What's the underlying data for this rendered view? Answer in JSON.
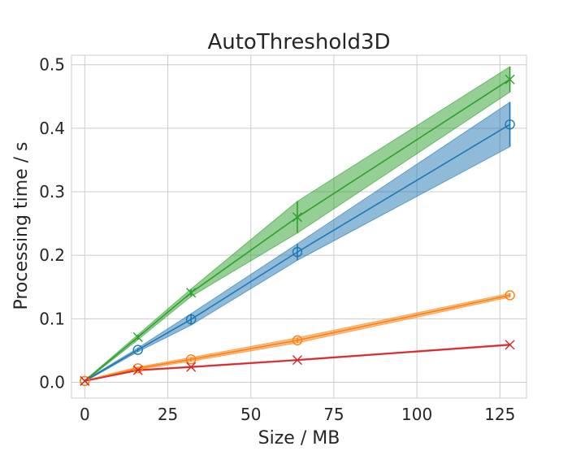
{
  "chart_data": {
    "type": "line",
    "title": "AutoThreshold3D",
    "xlabel": "Size / MB",
    "ylabel": "Processing time / s",
    "xlim": [
      -4,
      133
    ],
    "ylim": [
      -0.025,
      0.515
    ],
    "xticks": [
      0,
      25,
      50,
      75,
      100,
      125
    ],
    "yticks": [
      0.0,
      0.1,
      0.2,
      0.3,
      0.4,
      0.5
    ],
    "xtick_labels": [
      "0",
      "25",
      "50",
      "75",
      "100",
      "125"
    ],
    "ytick_labels": [
      "0.0",
      "0.1",
      "0.2",
      "0.3",
      "0.4",
      "0.5"
    ],
    "grid": true,
    "legend": "none",
    "series": [
      {
        "color": "#2ca02c",
        "marker": "x",
        "x": [
          0,
          16,
          32,
          64,
          128
        ],
        "y": [
          0.002,
          0.071,
          0.141,
          0.26,
          0.477
        ],
        "err": [
          0.001,
          0.004,
          0.006,
          0.025,
          0.02
        ]
      },
      {
        "color": "#1f77b4",
        "marker": "o",
        "x": [
          0,
          16,
          32,
          64,
          128
        ],
        "y": [
          0.002,
          0.051,
          0.099,
          0.205,
          0.406
        ],
        "err": [
          0.001,
          0.003,
          0.009,
          0.013,
          0.035
        ]
      },
      {
        "color": "#ff7f0e",
        "marker": "o",
        "x": [
          0,
          16,
          32,
          64,
          128
        ],
        "y": [
          0.002,
          0.022,
          0.036,
          0.066,
          0.137
        ],
        "err": [
          0.001,
          0.002,
          0.003,
          0.004,
          0.003
        ]
      },
      {
        "color": "#d62728",
        "marker": "x",
        "x": [
          0,
          16,
          32,
          64,
          128
        ],
        "y": [
          0.002,
          0.019,
          0.024,
          0.035,
          0.059
        ],
        "err": [
          0.0005,
          0.001,
          0.001,
          0.001,
          0.001
        ]
      }
    ]
  }
}
